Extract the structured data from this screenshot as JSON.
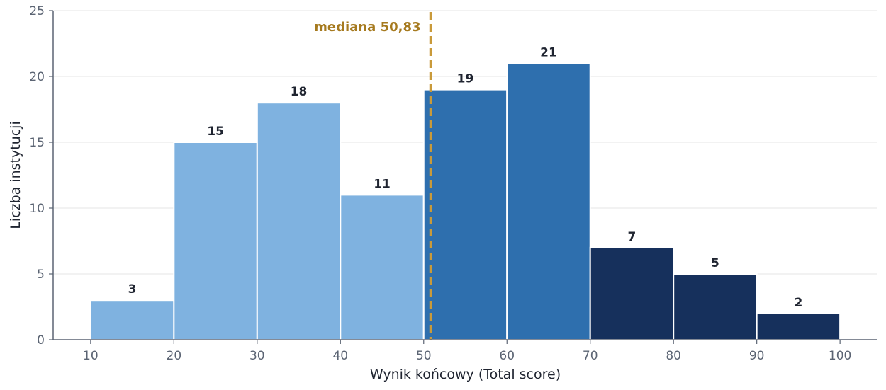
{
  "chart_data": {
    "type": "bar",
    "bins": [
      {
        "start": 10,
        "end": 20,
        "count": 3,
        "label": "3",
        "group": "low"
      },
      {
        "start": 20,
        "end": 30,
        "count": 15,
        "label": "15",
        "group": "low"
      },
      {
        "start": 30,
        "end": 40,
        "count": 18,
        "label": "18",
        "group": "low"
      },
      {
        "start": 40,
        "end": 50,
        "count": 11,
        "label": "11",
        "group": "low"
      },
      {
        "start": 50,
        "end": 60,
        "count": 19,
        "label": "19",
        "group": "mid"
      },
      {
        "start": 60,
        "end": 70,
        "count": 21,
        "label": "21",
        "group": "mid"
      },
      {
        "start": 70,
        "end": 80,
        "count": 7,
        "label": "7",
        "group": "high"
      },
      {
        "start": 80,
        "end": 90,
        "count": 5,
        "label": "5",
        "group": "high"
      },
      {
        "start": 90,
        "end": 100,
        "count": 2,
        "label": "2",
        "group": "high"
      }
    ],
    "xlabel": "Wynik końcowy (Total score)",
    "ylabel": "Liczba instytucji",
    "xlim": [
      5.5,
      104.5
    ],
    "ylim": [
      0,
      25
    ],
    "xticks": [
      10,
      20,
      30,
      40,
      50,
      60,
      70,
      80,
      90,
      100
    ],
    "xtick_labels": [
      "10",
      "20",
      "30",
      "40",
      "50",
      "60",
      "70",
      "80",
      "90",
      "100"
    ],
    "yticks": [
      0,
      5,
      10,
      15,
      20,
      25
    ],
    "ytick_labels": [
      "0",
      "5",
      "10",
      "15",
      "20",
      "25"
    ],
    "grid": "horizontal",
    "median": {
      "value": 50.83,
      "label": "mediana 50,83"
    },
    "colors": {
      "low": "#7fb2e0",
      "mid": "#2e6fae",
      "high": "#16305c",
      "median": "#c99a3a",
      "median_text": "#a67a1f",
      "grid": "#e6e6e6",
      "axis": "#5b6473"
    }
  }
}
